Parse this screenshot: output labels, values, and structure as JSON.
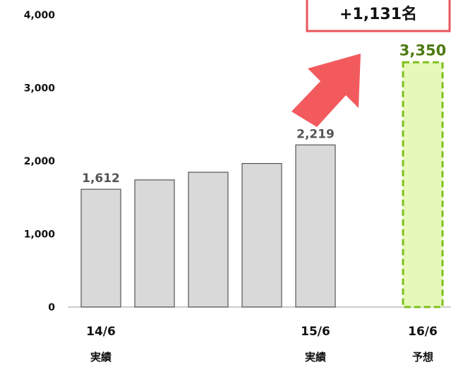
{
  "chart_data": {
    "type": "bar",
    "categories": [
      "14/6",
      "",
      "",
      "",
      "15/6",
      "",
      "16/6"
    ],
    "category_sublabels": [
      "実績",
      "",
      "",
      "",
      "実績",
      "",
      "予想"
    ],
    "values": [
      1612,
      1740,
      1845,
      1965,
      2219,
      null,
      3350
    ],
    "data_labels": [
      "1,612",
      "",
      "",
      "",
      "2,219",
      "",
      "3,350"
    ],
    "forecast_index": 6,
    "ylim": [
      0,
      4000
    ],
    "yticks": [
      0,
      1000,
      2000,
      3000,
      4000
    ],
    "ytick_labels": [
      "0",
      "1,000",
      "2,000",
      "3,000",
      "4,000"
    ],
    "grid": false,
    "callout": {
      "text": "+1,131名",
      "border_color": "#e8565a",
      "arrow_color": "#f25a5e"
    },
    "colors": {
      "actual_fill": "#d9d9d9",
      "actual_stroke": "#555555",
      "forecast_fill": "#e6f9b8",
      "forecast_stroke": "#7fbf1e",
      "forecast_label": "#4f7a12"
    }
  }
}
